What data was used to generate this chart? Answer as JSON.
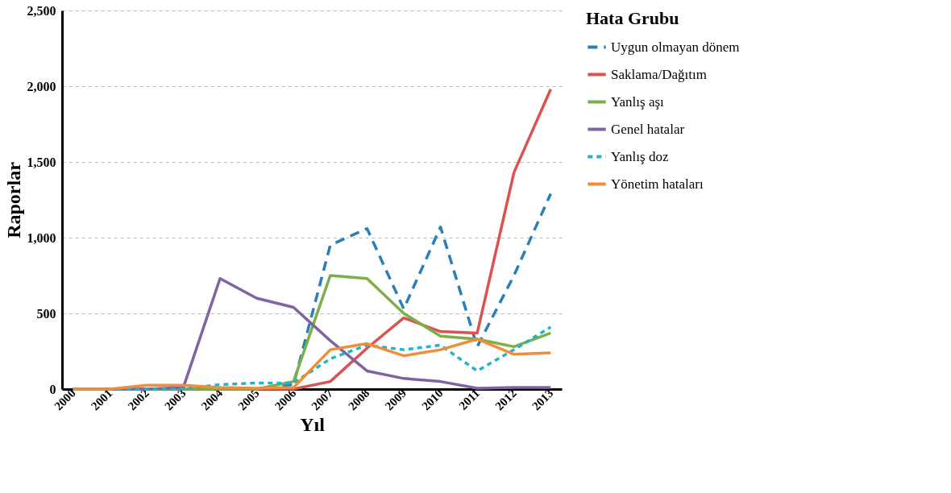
{
  "chart_data": {
    "type": "line",
    "xlabel": "Yıl",
    "ylabel": "Raporlar",
    "legend_title": "Hata Grubu",
    "legend": "right",
    "grid": "y",
    "categories": [
      "2000",
      "2001",
      "2002",
      "2003",
      "2004",
      "2005",
      "2006",
      "2007",
      "2008",
      "2009",
      "2010",
      "2011",
      "2012",
      "2013"
    ],
    "ylim": [
      0,
      2500
    ],
    "yticks": [
      0,
      {
        "value": 500,
        "label": "500"
      },
      {
        "value": 1000,
        "label": "1,000"
      },
      {
        "value": 1500,
        "label": "1,500"
      },
      {
        "value": 2000,
        "label": "2,000"
      },
      {
        "value": 2500,
        "label": "2,500"
      }
    ],
    "series": [
      {
        "name": "Uygun olmayan dönem",
        "color": "#2a7fb8",
        "line_style": "dashed",
        "values": [
          0,
          0,
          0,
          0,
          0,
          0,
          30,
          950,
          1060,
          530,
          1070,
          280,
          750,
          1290
        ]
      },
      {
        "name": "Saklama/Dağıtım",
        "color": "#d9534f",
        "line_style": "solid",
        "values": [
          0,
          0,
          0,
          0,
          0,
          0,
          0,
          50,
          270,
          470,
          380,
          370,
          1430,
          1980
        ]
      },
      {
        "name": "Yanlış aşı",
        "color": "#7cae4a",
        "line_style": "solid",
        "values": [
          0,
          0,
          0,
          0,
          0,
          0,
          50,
          750,
          730,
          500,
          350,
          330,
          280,
          370
        ]
      },
      {
        "name": "Genel hatalar",
        "color": "#8064a2",
        "line_style": "solid",
        "values": [
          0,
          0,
          0,
          10,
          730,
          600,
          540,
          320,
          120,
          70,
          50,
          5,
          10,
          10
        ]
      },
      {
        "name": "Yanlış doz",
        "color": "#22b5c8",
        "line_style": "dotted",
        "values": [
          0,
          0,
          0,
          0,
          30,
          40,
          40,
          200,
          290,
          260,
          290,
          120,
          260,
          410
        ]
      },
      {
        "name": "Yönetim hataları",
        "color": "#f08c3a",
        "line_style": "solid",
        "values": [
          0,
          0,
          25,
          25,
          10,
          5,
          10,
          260,
          300,
          220,
          260,
          330,
          230,
          240
        ]
      }
    ]
  }
}
